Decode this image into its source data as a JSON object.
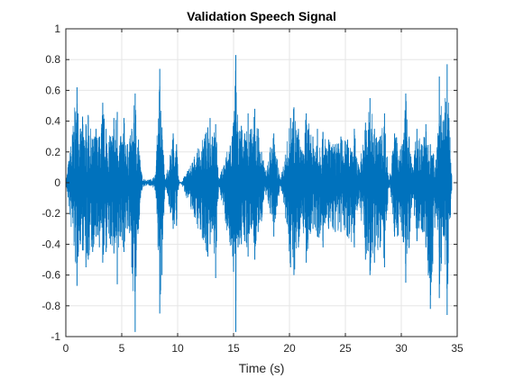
{
  "chart_data": {
    "type": "line",
    "title": "Validation Speech Signal",
    "xlabel": "Time (s)",
    "ylabel": "",
    "xlim": [
      0,
      35
    ],
    "ylim": [
      -1,
      1
    ],
    "x_ticks": [
      0,
      5,
      10,
      15,
      20,
      25,
      30,
      35
    ],
    "y_ticks": [
      -1,
      -0.8,
      -0.6,
      -0.4,
      -0.2,
      0,
      0.2,
      0.4,
      0.6,
      0.8,
      1
    ],
    "x_tick_labels": [
      "0",
      "5",
      "10",
      "15",
      "20",
      "25",
      "30",
      "35"
    ],
    "y_tick_labels": [
      "-1",
      "-0.8",
      "-0.6",
      "-0.4",
      "-0.2",
      "0",
      "0.2",
      "0.4",
      "0.6",
      "0.8",
      "1"
    ],
    "grid": true,
    "box": true,
    "series": [
      {
        "color": "#0072BD",
        "x": [
          0,
          1.0,
          1.1,
          1.3,
          1.5,
          1.8,
          2.0,
          2.4,
          2.7,
          3.0,
          3.3,
          3.6,
          4.0,
          4.3,
          4.6,
          4.9,
          5.2,
          5.5,
          5.9,
          6.2,
          6.5,
          6.8,
          7.1,
          7.5,
          8.0,
          8.4,
          8.6,
          8.9,
          9.6,
          9.9,
          10.1,
          10.3,
          12.7,
          12.9,
          13.1,
          13.4,
          13.7,
          15.0,
          15.2,
          15.4,
          15.7,
          16.0,
          16.3,
          16.6,
          16.9,
          17.2,
          17.5,
          17.9,
          18.3,
          18.6,
          18.9,
          19.2,
          20.1,
          20.4,
          20.8,
          21.1,
          21.5,
          22.1,
          22.5,
          23.0,
          23.5,
          24.1,
          24.6,
          25.2,
          25.8,
          26.2,
          26.8,
          27.2,
          27.6,
          28.1,
          28.5,
          28.9,
          29.4,
          30.1,
          30.4,
          30.7,
          31.0,
          31.4,
          31.8,
          32.2,
          32.6,
          33.1,
          33.4,
          33.8,
          34.1,
          34.5
        ],
        "max": [
          0,
          0.62,
          0.45,
          0.35,
          0.43,
          0.38,
          0.44,
          0.28,
          0.35,
          0.3,
          0.52,
          0.35,
          0.3,
          0.42,
          0.46,
          0.3,
          0.42,
          0.25,
          0.35,
          0.58,
          0.28,
          0.05,
          0.02,
          0.02,
          0.05,
          0.74,
          0.36,
          0.02,
          0.32,
          0.25,
          0.02,
          0.0,
          0.36,
          0.42,
          0.3,
          0.38,
          0.02,
          0.39,
          0.83,
          0.33,
          0.37,
          0.32,
          0.45,
          0.35,
          0.48,
          0.35,
          0.2,
          0.08,
          0.23,
          0.32,
          0.15,
          0.02,
          0.42,
          0.49,
          0.35,
          0.2,
          0.45,
          0.3,
          0.35,
          0.33,
          0.28,
          0.25,
          0.3,
          0.28,
          0.35,
          0.1,
          0.39,
          0.55,
          0.35,
          0.3,
          0.45,
          0.02,
          0.32,
          0.25,
          0.58,
          0.3,
          0.1,
          0.35,
          0.25,
          0.38,
          0.25,
          0.15,
          0.69,
          0.4,
          0.77,
          0.05
        ],
        "min": [
          0,
          -0.67,
          -0.48,
          -0.4,
          -0.44,
          -0.55,
          -0.5,
          -0.45,
          -0.35,
          -0.42,
          -0.52,
          -0.45,
          -0.4,
          -0.46,
          -0.66,
          -0.35,
          -0.45,
          -0.3,
          -0.55,
          -0.97,
          -0.3,
          -0.05,
          -0.02,
          -0.02,
          -0.05,
          -0.85,
          -0.6,
          -0.02,
          -0.3,
          -0.28,
          -0.02,
          0.0,
          -0.48,
          -0.4,
          -0.3,
          -0.62,
          -0.02,
          -0.58,
          -0.97,
          -0.42,
          -0.4,
          -0.38,
          -0.48,
          -0.3,
          -0.5,
          -0.32,
          -0.25,
          -0.08,
          -0.2,
          -0.35,
          -0.15,
          -0.02,
          -0.55,
          -0.6,
          -0.42,
          -0.2,
          -0.52,
          -0.3,
          -0.35,
          -0.42,
          -0.3,
          -0.32,
          -0.32,
          -0.35,
          -0.42,
          -0.1,
          -0.5,
          -0.6,
          -0.52,
          -0.42,
          -0.55,
          -0.02,
          -0.35,
          -0.35,
          -0.65,
          -0.42,
          -0.1,
          -0.38,
          -0.3,
          -0.42,
          -0.82,
          -0.2,
          -0.75,
          -0.35,
          -0.86,
          -0.05
        ]
      }
    ]
  }
}
